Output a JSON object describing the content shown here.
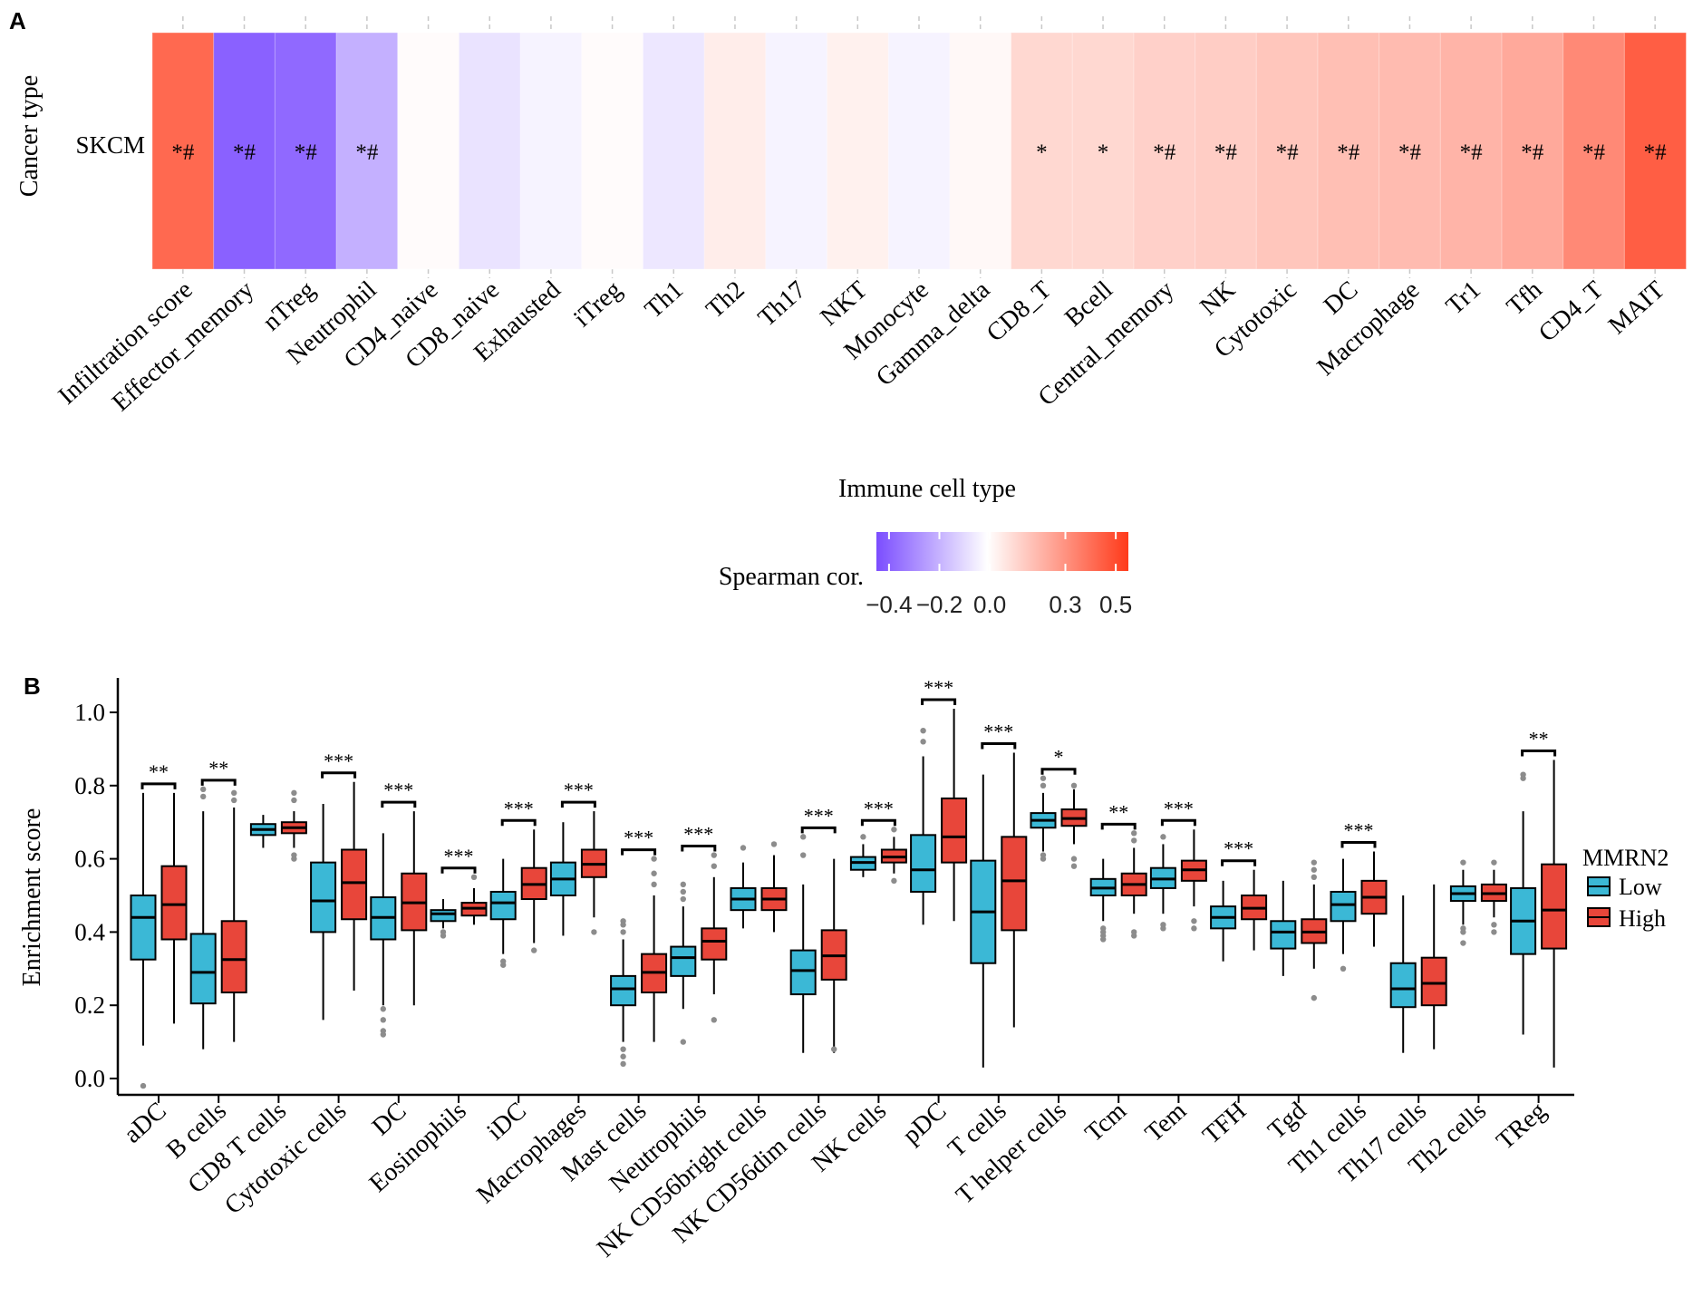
{
  "panel_a": {
    "panel_label": "A",
    "row_label": "SKCM",
    "y_axis_label": "Cancer type",
    "x_axis_label": "Immune cell type",
    "legend_title": "Spearman cor.",
    "legend_ticks": [
      "−0.4",
      "−0.2",
      "0.0",
      "0.3",
      "0.5"
    ],
    "legend_colors": {
      "low": "#7b4dff",
      "mid": "#ffffff",
      "high": "#ff3a1a"
    }
  },
  "panel_b": {
    "panel_label": "B",
    "y_axis_label": "Enrichment score",
    "legend_title": "MMRN2",
    "legend_low_label": "Low",
    "legend_high_label": "High",
    "colors": {
      "low": "#3bb8d6",
      "high": "#e8463a"
    }
  },
  "chart_data": [
    {
      "type": "heatmap",
      "xlabel": "Immune cell type",
      "ylabel": "Cancer type",
      "rows": [
        "SKCM"
      ],
      "color_range": [
        -0.45,
        0.55
      ],
      "cells": [
        {
          "label": "Infiltration score",
          "value": 0.42,
          "sig": "*#"
        },
        {
          "label": "Effector_memory",
          "value": -0.4,
          "sig": "*#"
        },
        {
          "label": "nTreg",
          "value": -0.38,
          "sig": "*#"
        },
        {
          "label": "Neutrophil",
          "value": -0.2,
          "sig": "*#"
        },
        {
          "label": "CD4_naive",
          "value": 0.01,
          "sig": ""
        },
        {
          "label": "CD8_naive",
          "value": -0.07,
          "sig": ""
        },
        {
          "label": "Exhausted",
          "value": -0.03,
          "sig": ""
        },
        {
          "label": "iTreg",
          "value": 0.01,
          "sig": ""
        },
        {
          "label": "Th1",
          "value": -0.06,
          "sig": ""
        },
        {
          "label": "Th2",
          "value": 0.05,
          "sig": ""
        },
        {
          "label": "Th17",
          "value": -0.03,
          "sig": ""
        },
        {
          "label": "NKT",
          "value": 0.04,
          "sig": ""
        },
        {
          "label": "Monocyte",
          "value": -0.03,
          "sig": ""
        },
        {
          "label": "Gamma_delta",
          "value": 0.02,
          "sig": ""
        },
        {
          "label": "CD8_T",
          "value": 0.11,
          "sig": "*"
        },
        {
          "label": "Bcell",
          "value": 0.11,
          "sig": "*"
        },
        {
          "label": "Central_memory",
          "value": 0.13,
          "sig": "*#"
        },
        {
          "label": "NK",
          "value": 0.14,
          "sig": "*#"
        },
        {
          "label": "Cytotoxic",
          "value": 0.16,
          "sig": "*#"
        },
        {
          "label": "DC",
          "value": 0.18,
          "sig": "*#"
        },
        {
          "label": "Macrophage",
          "value": 0.19,
          "sig": "*#"
        },
        {
          "label": "Tr1",
          "value": 0.21,
          "sig": "*#"
        },
        {
          "label": "Tfh",
          "value": 0.24,
          "sig": "*#"
        },
        {
          "label": "CD4_T",
          "value": 0.33,
          "sig": "*#"
        },
        {
          "label": "MAIT",
          "value": 0.45,
          "sig": "*#"
        }
      ]
    },
    {
      "type": "box",
      "ylabel": "Enrichment score",
      "ylim": [
        -0.04,
        1.09
      ],
      "yticks": [
        "0.0",
        "0.2",
        "0.4",
        "0.6",
        "0.8",
        "1.0"
      ],
      "series_names": [
        "Low",
        "High"
      ],
      "categories": [
        {
          "label": "aDC",
          "sig": "**",
          "low": {
            "whislo": 0.09,
            "q1": 0.325,
            "med": 0.44,
            "q3": 0.5,
            "whishi": 0.78,
            "out": [
              -0.02
            ]
          },
          "high": {
            "whislo": 0.15,
            "q1": 0.38,
            "med": 0.475,
            "q3": 0.58,
            "whishi": 0.78,
            "out": []
          }
        },
        {
          "label": "B cells",
          "sig": "**",
          "low": {
            "whislo": 0.08,
            "q1": 0.205,
            "med": 0.29,
            "q3": 0.395,
            "whishi": 0.73,
            "out": [
              0.77,
              0.79
            ]
          },
          "high": {
            "whislo": 0.1,
            "q1": 0.235,
            "med": 0.325,
            "q3": 0.43,
            "whishi": 0.74,
            "out": [
              0.76,
              0.78
            ]
          }
        },
        {
          "label": "CD8 T cells",
          "sig": "",
          "low": {
            "whislo": 0.63,
            "q1": 0.665,
            "med": 0.68,
            "q3": 0.695,
            "whishi": 0.72,
            "out": []
          },
          "high": {
            "whislo": 0.63,
            "q1": 0.67,
            "med": 0.685,
            "q3": 0.7,
            "whishi": 0.73,
            "out": [
              0.6,
              0.61,
              0.76,
              0.78
            ]
          }
        },
        {
          "label": "Cytotoxic cells",
          "sig": "***",
          "low": {
            "whislo": 0.16,
            "q1": 0.4,
            "med": 0.485,
            "q3": 0.59,
            "whishi": 0.75,
            "out": []
          },
          "high": {
            "whislo": 0.24,
            "q1": 0.435,
            "med": 0.535,
            "q3": 0.625,
            "whishi": 0.81,
            "out": []
          }
        },
        {
          "label": "DC",
          "sig": "***",
          "low": {
            "whislo": 0.2,
            "q1": 0.38,
            "med": 0.44,
            "q3": 0.495,
            "whishi": 0.67,
            "out": [
              0.12,
              0.13,
              0.16,
              0.19
            ]
          },
          "high": {
            "whislo": 0.2,
            "q1": 0.405,
            "med": 0.48,
            "q3": 0.56,
            "whishi": 0.73,
            "out": []
          }
        },
        {
          "label": "Eosinophils",
          "sig": "***",
          "low": {
            "whislo": 0.41,
            "q1": 0.43,
            "med": 0.45,
            "q3": 0.46,
            "whishi": 0.49,
            "out": [
              0.39,
              0.4
            ]
          },
          "high": {
            "whislo": 0.42,
            "q1": 0.445,
            "med": 0.465,
            "q3": 0.48,
            "whishi": 0.52,
            "out": [
              0.55
            ]
          }
        },
        {
          "label": "iDC",
          "sig": "***",
          "low": {
            "whislo": 0.34,
            "q1": 0.435,
            "med": 0.48,
            "q3": 0.51,
            "whishi": 0.6,
            "out": [
              0.31,
              0.32
            ]
          },
          "high": {
            "whislo": 0.37,
            "q1": 0.49,
            "med": 0.53,
            "q3": 0.575,
            "whishi": 0.68,
            "out": [
              0.35
            ]
          }
        },
        {
          "label": "Macrophages",
          "sig": "***",
          "low": {
            "whislo": 0.39,
            "q1": 0.5,
            "med": 0.545,
            "q3": 0.59,
            "whishi": 0.7,
            "out": []
          },
          "high": {
            "whislo": 0.44,
            "q1": 0.55,
            "med": 0.585,
            "q3": 0.625,
            "whishi": 0.73,
            "out": [
              0.4
            ]
          }
        },
        {
          "label": "Mast cells",
          "sig": "***",
          "low": {
            "whislo": 0.1,
            "q1": 0.2,
            "med": 0.245,
            "q3": 0.28,
            "whishi": 0.38,
            "out": [
              0.04,
              0.06,
              0.08,
              0.4,
              0.42,
              0.43
            ]
          },
          "high": {
            "whislo": 0.1,
            "q1": 0.235,
            "med": 0.29,
            "q3": 0.34,
            "whishi": 0.5,
            "out": [
              0.53,
              0.56,
              0.6
            ]
          }
        },
        {
          "label": "Neutrophils",
          "sig": "***",
          "low": {
            "whislo": 0.19,
            "q1": 0.28,
            "med": 0.33,
            "q3": 0.36,
            "whishi": 0.47,
            "out": [
              0.1,
              0.49,
              0.51,
              0.53
            ]
          },
          "high": {
            "whislo": 0.23,
            "q1": 0.325,
            "med": 0.375,
            "q3": 0.41,
            "whishi": 0.55,
            "out": [
              0.16,
              0.58,
              0.61
            ]
          }
        },
        {
          "label": "NK CD56bright cells",
          "sig": "",
          "low": {
            "whislo": 0.41,
            "q1": 0.46,
            "med": 0.49,
            "q3": 0.52,
            "whishi": 0.59,
            "out": [
              0.63
            ]
          },
          "high": {
            "whislo": 0.4,
            "q1": 0.46,
            "med": 0.49,
            "q3": 0.52,
            "whishi": 0.61,
            "out": [
              0.64
            ]
          }
        },
        {
          "label": "NK CD56dim cells",
          "sig": "***",
          "low": {
            "whislo": 0.07,
            "q1": 0.23,
            "med": 0.295,
            "q3": 0.35,
            "whishi": 0.53,
            "out": [
              0.61,
              0.66
            ]
          },
          "high": {
            "whislo": 0.07,
            "q1": 0.27,
            "med": 0.335,
            "q3": 0.405,
            "whishi": 0.6,
            "out": [
              0.08
            ]
          }
        },
        {
          "label": "NK cells",
          "sig": "***",
          "low": {
            "whislo": 0.55,
            "q1": 0.57,
            "med": 0.59,
            "q3": 0.605,
            "whishi": 0.64,
            "out": [
              0.66
            ]
          },
          "high": {
            "whislo": 0.56,
            "q1": 0.59,
            "med": 0.605,
            "q3": 0.625,
            "whishi": 0.66,
            "out": [
              0.54,
              0.68
            ]
          }
        },
        {
          "label": "pDC",
          "sig": "***",
          "low": {
            "whislo": 0.42,
            "q1": 0.51,
            "med": 0.57,
            "q3": 0.665,
            "whishi": 0.88,
            "out": [
              0.92,
              0.95
            ]
          },
          "high": {
            "whislo": 0.43,
            "q1": 0.59,
            "med": 0.66,
            "q3": 0.765,
            "whishi": 1.01,
            "out": []
          }
        },
        {
          "label": "T cells",
          "sig": "***",
          "low": {
            "whislo": 0.03,
            "q1": 0.315,
            "med": 0.455,
            "q3": 0.595,
            "whishi": 0.83,
            "out": []
          },
          "high": {
            "whislo": 0.14,
            "q1": 0.405,
            "med": 0.54,
            "q3": 0.66,
            "whishi": 0.89,
            "out": []
          }
        },
        {
          "label": "T helper cells",
          "sig": "*",
          "low": {
            "whislo": 0.62,
            "q1": 0.685,
            "med": 0.705,
            "q3": 0.725,
            "whishi": 0.78,
            "out": [
              0.6,
              0.61,
              0.8,
              0.82
            ]
          },
          "high": {
            "whislo": 0.64,
            "q1": 0.69,
            "med": 0.71,
            "q3": 0.735,
            "whishi": 0.79,
            "out": [
              0.58,
              0.6,
              0.8
            ]
          }
        },
        {
          "label": "Tcm",
          "sig": "**",
          "low": {
            "whislo": 0.43,
            "q1": 0.5,
            "med": 0.52,
            "q3": 0.545,
            "whishi": 0.6,
            "out": [
              0.38,
              0.39,
              0.4,
              0.41
            ]
          },
          "high": {
            "whislo": 0.45,
            "q1": 0.5,
            "med": 0.53,
            "q3": 0.56,
            "whishi": 0.63,
            "out": [
              0.39,
              0.4,
              0.65,
              0.67
            ]
          }
        },
        {
          "label": "Tem",
          "sig": "***",
          "low": {
            "whislo": 0.45,
            "q1": 0.52,
            "med": 0.545,
            "q3": 0.575,
            "whishi": 0.64,
            "out": [
              0.41,
              0.42,
              0.66
            ]
          },
          "high": {
            "whislo": 0.47,
            "q1": 0.54,
            "med": 0.57,
            "q3": 0.595,
            "whishi": 0.68,
            "out": [
              0.41,
              0.43
            ]
          }
        },
        {
          "label": "TFH",
          "sig": "***",
          "low": {
            "whislo": 0.32,
            "q1": 0.41,
            "med": 0.44,
            "q3": 0.47,
            "whishi": 0.54,
            "out": []
          },
          "high": {
            "whislo": 0.35,
            "q1": 0.435,
            "med": 0.465,
            "q3": 0.5,
            "whishi": 0.57,
            "out": []
          }
        },
        {
          "label": "Tgd",
          "sig": "",
          "low": {
            "whislo": 0.28,
            "q1": 0.355,
            "med": 0.4,
            "q3": 0.43,
            "whishi": 0.54,
            "out": []
          },
          "high": {
            "whislo": 0.3,
            "q1": 0.37,
            "med": 0.4,
            "q3": 0.435,
            "whishi": 0.53,
            "out": [
              0.22,
              0.55,
              0.57,
              0.59
            ]
          }
        },
        {
          "label": "Th1 cells",
          "sig": "***",
          "low": {
            "whislo": 0.34,
            "q1": 0.43,
            "med": 0.475,
            "q3": 0.51,
            "whishi": 0.6,
            "out": [
              0.3
            ]
          },
          "high": {
            "whislo": 0.36,
            "q1": 0.45,
            "med": 0.495,
            "q3": 0.54,
            "whishi": 0.62,
            "out": []
          }
        },
        {
          "label": "Th17 cells",
          "sig": "",
          "low": {
            "whislo": 0.07,
            "q1": 0.195,
            "med": 0.245,
            "q3": 0.315,
            "whishi": 0.5,
            "out": []
          },
          "high": {
            "whislo": 0.08,
            "q1": 0.2,
            "med": 0.26,
            "q3": 0.33,
            "whishi": 0.53,
            "out": []
          }
        },
        {
          "label": "Th2 cells",
          "sig": "",
          "low": {
            "whislo": 0.42,
            "q1": 0.485,
            "med": 0.505,
            "q3": 0.525,
            "whishi": 0.57,
            "out": [
              0.37,
              0.4,
              0.41,
              0.59
            ]
          },
          "high": {
            "whislo": 0.44,
            "q1": 0.485,
            "med": 0.505,
            "q3": 0.53,
            "whishi": 0.57,
            "out": [
              0.4,
              0.42,
              0.59
            ]
          }
        },
        {
          "label": "TReg",
          "sig": "**",
          "low": {
            "whislo": 0.12,
            "q1": 0.34,
            "med": 0.43,
            "q3": 0.52,
            "whishi": 0.73,
            "out": [
              0.82,
              0.83
            ]
          },
          "high": {
            "whislo": 0.03,
            "q1": 0.355,
            "med": 0.46,
            "q3": 0.585,
            "whishi": 0.87,
            "out": []
          }
        }
      ]
    }
  ]
}
